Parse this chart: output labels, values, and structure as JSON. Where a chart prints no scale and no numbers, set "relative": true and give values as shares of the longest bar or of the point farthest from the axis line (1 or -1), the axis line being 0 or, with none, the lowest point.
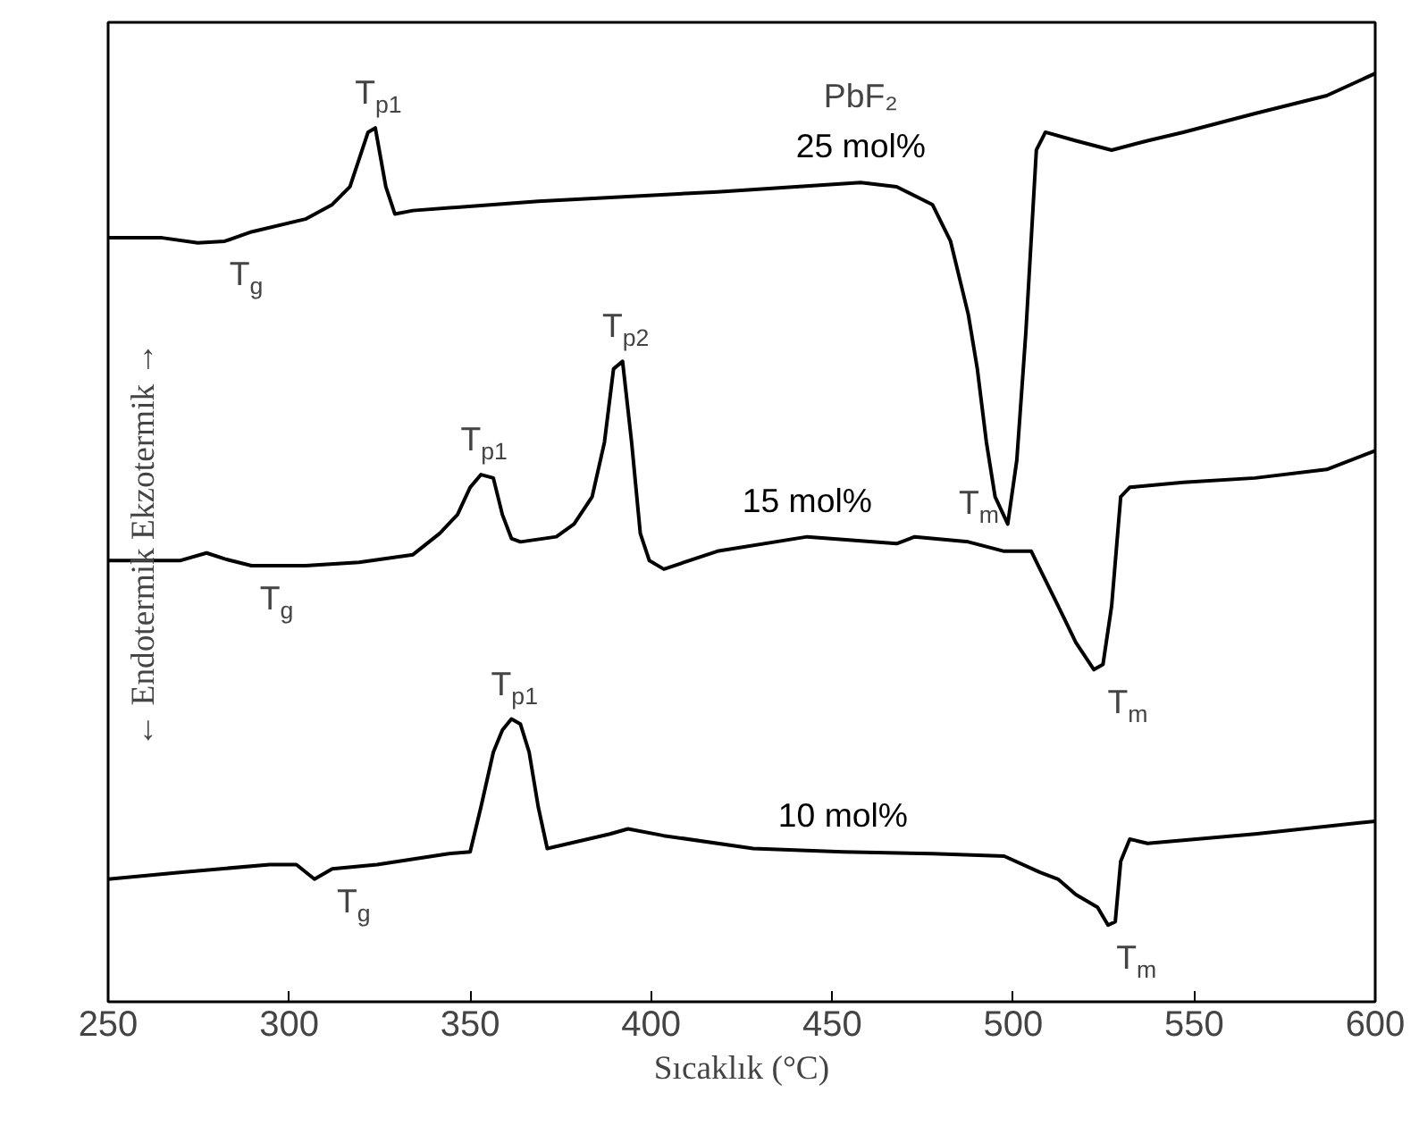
{
  "chart_data": {
    "type": "line",
    "relative": true,
    "xlabel": "Sıcaklık (°C)",
    "ylabel": "← Endotermik                    Ekzotermik →",
    "xlim": [
      250,
      600
    ],
    "xticks": [
      250,
      300,
      350,
      400,
      450,
      500,
      550,
      600
    ],
    "grid": false,
    "marker": "none",
    "line_style": "solid",
    "series": [
      {
        "name": "25 mol%",
        "color": "#000000",
        "x": [
          250,
          264.9,
          274.8,
          282.2,
          289.6,
          304.5,
          311.9,
          316.8,
          321.8,
          323.8,
          326.7,
          329.2,
          334.2,
          368.8,
          418.3,
          457.9,
          467.8,
          477.7,
          482.7,
          487.6,
          490.1,
          492.6,
          495.0,
          498.5,
          501.0,
          503.5,
          506.4,
          508.9,
          517.3,
          527.2,
          537.1,
          547.0,
          566.8,
          586.6,
          600
        ],
        "values": [
          0.807,
          0.807,
          0.801,
          0.803,
          0.814,
          0.829,
          0.846,
          0.867,
          0.931,
          0.936,
          0.867,
          0.835,
          0.839,
          0.85,
          0.861,
          0.872,
          0.867,
          0.846,
          0.803,
          0.717,
          0.653,
          0.567,
          0.503,
          0.471,
          0.546,
          0.696,
          0.91,
          0.931,
          0.921,
          0.91,
          0.921,
          0.931,
          0.953,
          0.974,
          1.0
        ]
      },
      {
        "name": "15 mol%",
        "color": "#000000",
        "x": [
          250,
          269.8,
          277.2,
          282.2,
          289.6,
          304.5,
          319.3,
          334.2,
          341.6,
          346.5,
          350.0,
          353.0,
          356.4,
          358.9,
          361.4,
          363.9,
          373.8,
          378.7,
          383.7,
          387.1,
          389.6,
          392.1,
          394.6,
          397.0,
          399.5,
          403.5,
          418.3,
          443.1,
          467.8,
          472.8,
          487.6,
          497.5,
          505.0,
          507.4,
          512.4,
          517.3,
          522.3,
          524.8,
          527.2,
          529.7,
          532.2,
          547.0,
          566.8,
          586.6,
          600
        ],
        "values": [
          0.428,
          0.428,
          0.437,
          0.43,
          0.422,
          0.422,
          0.426,
          0.435,
          0.46,
          0.482,
          0.514,
          0.529,
          0.525,
          0.482,
          0.454,
          0.45,
          0.456,
          0.471,
          0.503,
          0.567,
          0.653,
          0.662,
          0.567,
          0.46,
          0.428,
          0.418,
          0.439,
          0.456,
          0.448,
          0.456,
          0.45,
          0.439,
          0.439,
          0.418,
          0.375,
          0.332,
          0.3,
          0.306,
          0.375,
          0.503,
          0.514,
          0.52,
          0.525,
          0.535,
          0.557
        ]
      },
      {
        "name": "10 mol%",
        "color": "#000000",
        "x": [
          250,
          269.8,
          294.6,
          302.0,
          307.0,
          311.9,
          324.3,
          344.1,
          350.0,
          353.0,
          356.4,
          358.9,
          361.4,
          363.9,
          366.3,
          368.8,
          371.3,
          388.6,
          393.6,
          403.5,
          428.2,
          453.0,
          477.7,
          497.5,
          507.4,
          512.4,
          517.3,
          523.3,
          526.2,
          528.2,
          529.7,
          532.2,
          537.1,
          566.8,
          600
        ],
        "values": [
          0.054,
          0.062,
          0.071,
          0.071,
          0.054,
          0.066,
          0.071,
          0.084,
          0.086,
          0.139,
          0.203,
          0.229,
          0.242,
          0.236,
          0.203,
          0.139,
          0.09,
          0.107,
          0.113,
          0.105,
          0.09,
          0.086,
          0.084,
          0.081,
          0.062,
          0.054,
          0.036,
          0.021,
          0.0,
          0.004,
          0.075,
          0.101,
          0.096,
          0.107,
          0.122
        ]
      }
    ],
    "annotations": [
      {
        "text": "T$_{g}$",
        "x": 282.2,
        "y": 0.803
      },
      {
        "text": "T$_{p1}$",
        "x": 323.8,
        "y": 0.936
      },
      "PbF₂",
      {
        "text": "T$_{m}$",
        "x": 498.5,
        "y": 0.471
      },
      {
        "text": "T$_{g}$",
        "x": 289.6,
        "y": 0.422
      },
      {
        "text": "T$_{p1}$",
        "x": 353.0,
        "y": 0.529
      },
      {
        "text": "T$_{p2}$",
        "x": 392.1,
        "y": 0.662
      },
      {
        "text": "T$_{m}$",
        "x": 524.8,
        "y": 0.3
      },
      {
        "text": "T$_{g}$",
        "x": 311.9,
        "y": 0.066
      },
      {
        "text": "T$_{p1}$",
        "x": 361.4,
        "y": 0.242
      },
      {
        "text": "T$_{m}$",
        "x": 526.2,
        "y": 0.0
      }
    ]
  }
}
